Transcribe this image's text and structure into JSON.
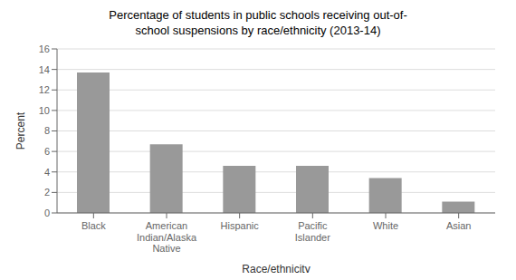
{
  "chart_data": {
    "type": "bar",
    "title": "Percentage of students in public schools receiving out-of-\nschool suspensions by race/ethnicity (2013-14)",
    "categories": [
      "Black",
      "American\nIndian/Alaska\nNative",
      "Hispanic",
      "Pacific\nIslander",
      "White",
      "Asian"
    ],
    "values": [
      13.7,
      6.7,
      4.6,
      4.6,
      3.4,
      1.1
    ],
    "color": "#999999",
    "xlabel": "Race/ethnicity",
    "ylabel": "Percent",
    "ylim": [
      0,
      16
    ],
    "yticks": [
      0,
      2,
      4,
      6,
      8,
      10,
      12,
      14,
      16
    ],
    "grid": true
  }
}
